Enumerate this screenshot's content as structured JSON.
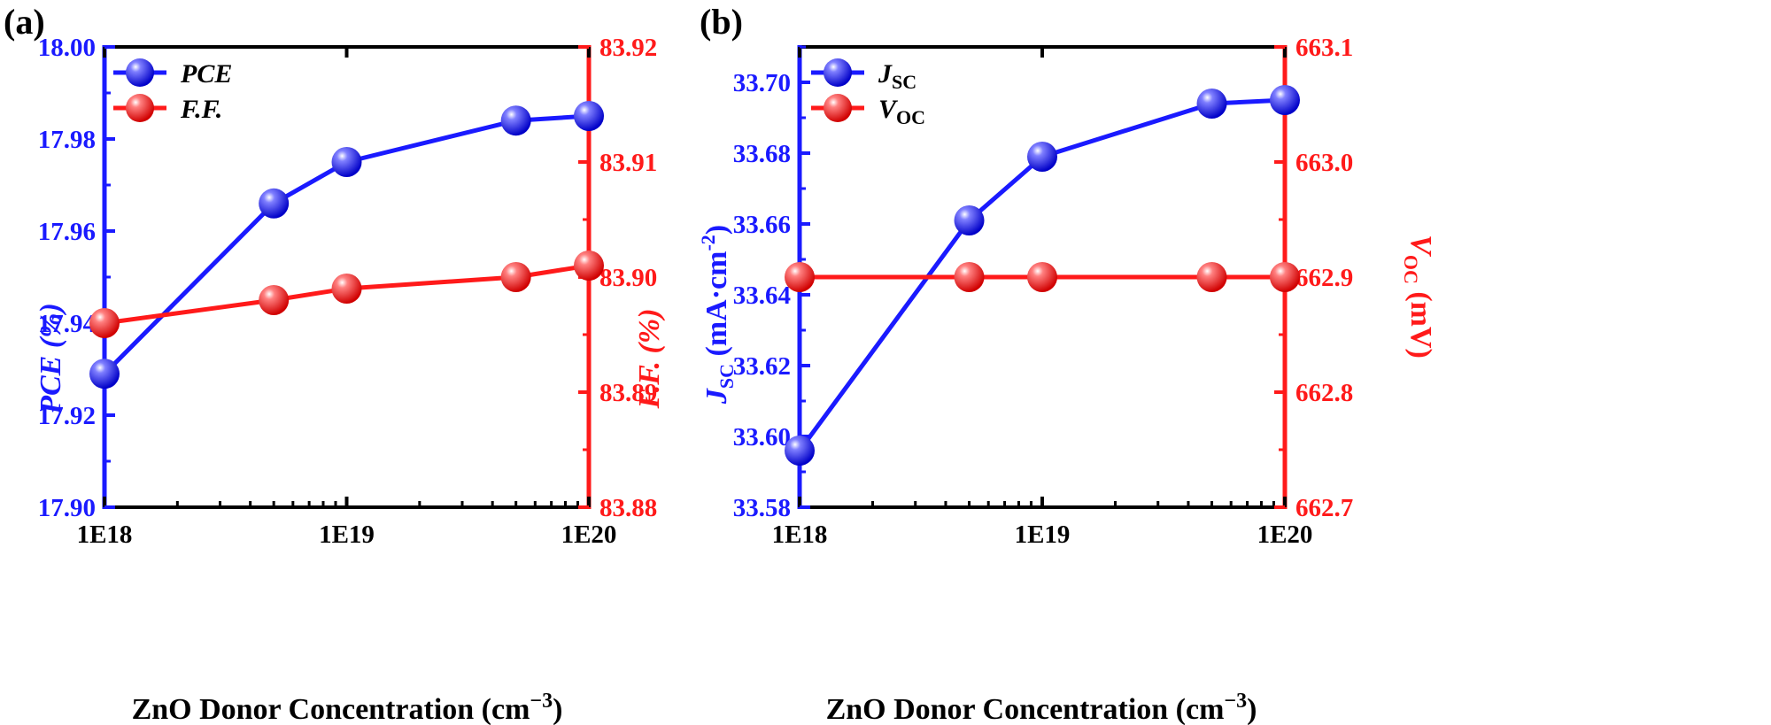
{
  "chart_data": [
    {
      "panel": "(a)",
      "type": "line",
      "x_scale": "log",
      "x": [
        1e+18,
        5e+18,
        1e+19,
        5e+19,
        1e+20
      ],
      "xticks": [
        "1E18",
        "1E19",
        "1E20"
      ],
      "xlabel": "ZnO Donor Concentration (cm",
      "xlabel_sup": "−3",
      "xlabel_end": ")",
      "xlim": [
        1e+18,
        1e+20
      ],
      "y_left": {
        "label": "PCE (%)",
        "color": "#1a1aff",
        "lim": [
          17.9,
          18.0
        ],
        "ticks": [
          "17.90",
          "17.92",
          "17.94",
          "17.96",
          "17.98",
          "18.00"
        ]
      },
      "y_right": {
        "label": "F.F. (%)",
        "color": "#ff1a1a",
        "lim": [
          83.88,
          83.92
        ],
        "ticks": [
          "83.88",
          "83.89",
          "83.90",
          "83.91",
          "83.92"
        ]
      },
      "series": [
        {
          "name": "PCE",
          "axis": "left",
          "color": "#1a1aff",
          "values": [
            17.929,
            17.966,
            17.975,
            17.984,
            17.985
          ]
        },
        {
          "name": "F.F.",
          "axis": "right",
          "color": "#ff1a1a",
          "values": [
            83.896,
            83.898,
            83.899,
            83.9,
            83.901
          ]
        }
      ],
      "legend_position": "top-left",
      "grid": false
    },
    {
      "panel": "(b)",
      "type": "line",
      "x_scale": "log",
      "x": [
        1e+18,
        5e+18,
        1e+19,
        5e+19,
        1e+20
      ],
      "xticks": [
        "1E18",
        "1E19",
        "1E20"
      ],
      "xlabel": "ZnO Donor Concentration (cm",
      "xlabel_sup": "−3",
      "xlabel_end": ")",
      "xlim": [
        1e+18,
        1e+20
      ],
      "y_left": {
        "label_main": "J",
        "label_sub": "SC",
        "label_rest": " (mA·cm",
        "label_sup": "-2",
        "label_end": ")",
        "color": "#1a1aff",
        "lim": [
          33.58,
          33.71
        ],
        "ticks": [
          "33.58",
          "33.60",
          "33.62",
          "33.64",
          "33.66",
          "33.68",
          "33.70"
        ]
      },
      "y_right": {
        "label_main": "V",
        "label_sub": "OC",
        "label_rest": " (mV)",
        "color": "#ff1a1a",
        "lim": [
          662.7,
          663.1
        ],
        "ticks": [
          "662.7",
          "662.8",
          "662.9",
          "663.0",
          "663.1"
        ]
      },
      "series": [
        {
          "name_main": "J",
          "name_sub": "SC",
          "axis": "left",
          "color": "#1a1aff",
          "values": [
            33.596,
            33.661,
            33.679,
            33.694,
            33.695
          ]
        },
        {
          "name_main": "V",
          "name_sub": "OC",
          "axis": "right",
          "color": "#ff1a1a",
          "values": [
            662.9,
            662.9,
            662.9,
            662.9,
            662.9
          ]
        }
      ],
      "legend_position": "top-left",
      "grid": false
    }
  ]
}
